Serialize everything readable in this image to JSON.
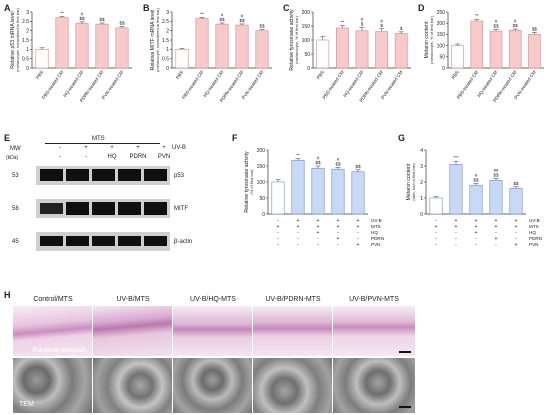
{
  "panels": {
    "A": "A",
    "B": "B",
    "C": "C",
    "D": "D",
    "E": "E",
    "F": "F",
    "G": "G",
    "H": "H"
  },
  "colors": {
    "bar_fill": "#f6caca",
    "bar_stroke": "#d88a8a",
    "bar_blue_fill": "#c7d9f5",
    "bar_blue_stroke": "#6d8fc8",
    "ctrl_fill": "#ffffff"
  },
  "chart_data": [
    {
      "panel": "A",
      "type": "bar",
      "categories": [
        "PBS",
        "PBS-treated CM",
        "HQ-treated CM",
        "PDRN-treated CM",
        "PVN-treated CM"
      ],
      "values": [
        1.0,
        2.7,
        2.4,
        2.35,
        2.15
      ],
      "errors": [
        0.08,
        0.06,
        0.07,
        0.06,
        0.07
      ],
      "annotations": [
        "",
        "**",
        "#\n$$",
        "$$",
        "$$"
      ],
      "ylabel": "Relative p53 mRNA level",
      "ylabel2": "(melanocyte, normalized to first bar)",
      "ylim": [
        0,
        3
      ],
      "yticks": [
        0,
        0.5,
        1,
        1.5,
        2,
        2.5,
        3
      ]
    },
    {
      "panel": "B",
      "type": "bar",
      "categories": [
        "PBS",
        "PBS-treated CM",
        "HQ-treated CM",
        "PDRN-treated CM",
        "PVN-treated CM"
      ],
      "values": [
        1.0,
        2.65,
        2.35,
        2.3,
        2.0
      ],
      "errors": [
        0.05,
        0.06,
        0.06,
        0.06,
        0.05
      ],
      "annotations": [
        "",
        "**",
        "#\n$$",
        "#\n$$",
        "$$"
      ],
      "ylabel": "Relative MITF mRNA level",
      "ylabel2": "(melanocyte, normalized to first bar)",
      "ylim": [
        0,
        3
      ],
      "yticks": [
        0,
        0.5,
        1,
        1.5,
        2,
        2.5,
        3
      ]
    },
    {
      "panel": "C",
      "type": "bar",
      "categories": [
        "PBS",
        "PBS-treated CM",
        "HQ-treated CM",
        "PDRN-treated CM",
        "PVN-treated CM"
      ],
      "values": [
        100,
        143,
        133,
        130,
        123
      ],
      "errors": [
        12,
        8,
        12,
        10,
        6
      ],
      "annotations": [
        "",
        "**",
        "#\n$",
        "#\n$",
        "$"
      ],
      "ylabel": "Relative tyrosinase activity",
      "ylabel2": "(melanocyte, % of first bar)",
      "ylim": [
        0,
        200
      ],
      "yticks": [
        0,
        50,
        100,
        150,
        200
      ]
    },
    {
      "panel": "D",
      "type": "bar",
      "categories": [
        "PBS",
        "PBS-treated CM",
        "HQ-treated CM",
        "PDRN-treated CM",
        "PVN-treated CM"
      ],
      "values": [
        100,
        210,
        165,
        168,
        150
      ],
      "errors": [
        7,
        8,
        7,
        6,
        9
      ],
      "annotations": [
        "",
        "**",
        "#\n$$",
        "#\n$$",
        "$$"
      ],
      "ylabel": "Melanin content",
      "ylabel2": "(melanocyte, % of first bar)",
      "ylim": [
        0,
        250
      ],
      "yticks": [
        0,
        50,
        100,
        150,
        200,
        250
      ]
    },
    {
      "panel": "F",
      "type": "bar",
      "values": [
        100,
        168,
        143,
        140,
        132
      ],
      "errors": [
        7,
        5,
        7,
        6,
        6
      ],
      "annotations": [
        "",
        "**",
        "#\n$$",
        "#\n$$",
        "$$"
      ],
      "ylabel": "Relative tyrosinase activity",
      "ylabel2": "(% of first bar)",
      "ylim": [
        0,
        200
      ],
      "yticks": [
        0,
        50,
        100,
        150,
        200
      ],
      "conditions": {
        "rows": [
          "UV-B",
          "MTS",
          "HQ",
          "PDRN",
          "PVN"
        ],
        "signs": [
          [
            "-",
            "+",
            "+",
            "+",
            "+"
          ],
          [
            "+",
            "+",
            "+",
            "+",
            "+"
          ],
          [
            "-",
            "-",
            "+",
            "-",
            "-"
          ],
          [
            "-",
            "-",
            "-",
            "+",
            "-"
          ],
          [
            "-",
            "-",
            "-",
            "-",
            "+"
          ]
        ]
      }
    },
    {
      "panel": "G",
      "type": "bar",
      "values": [
        1.0,
        3.1,
        1.8,
        2.1,
        1.6
      ],
      "errors": [
        0.08,
        0.2,
        0.1,
        0.12,
        0.1
      ],
      "annotations": [
        "",
        "***",
        "#\n$$",
        "##\n$$",
        "$$"
      ],
      "ylabel": "Melanin content",
      "ylabel2": "(skin, fold of first bar)",
      "ylim": [
        0,
        4
      ],
      "yticks": [
        0,
        1,
        2,
        3,
        4
      ],
      "conditions": {
        "rows": [
          "UV-B",
          "MTS",
          "HQ",
          "PDRN",
          "PVN"
        ],
        "signs": [
          [
            "-",
            "+",
            "+",
            "+",
            "+"
          ],
          [
            "+",
            "+",
            "+",
            "+",
            "+"
          ],
          [
            "-",
            "-",
            "+",
            "-",
            "-"
          ],
          [
            "-",
            "-",
            "-",
            "+",
            "-"
          ],
          [
            "-",
            "-",
            "-",
            "-",
            "+"
          ]
        ]
      }
    }
  ],
  "blot": {
    "header": "MTS",
    "mw_label": "MW",
    "kda_label": "(kDa)",
    "uvb_label": "UV-B",
    "uvb_signs": [
      "-",
      "+",
      "+",
      "+",
      "+"
    ],
    "lanes_treat": [
      "",
      "",
      "HQ",
      "PDRN",
      "PVN"
    ],
    "rows": [
      {
        "mw": "53",
        "name": "p53"
      },
      {
        "mw": "58",
        "name": "MITF"
      },
      {
        "mw": "45",
        "name": "β-actin"
      }
    ]
  },
  "histology": {
    "titles": [
      "Control/MTS",
      "UV-B/MTS",
      "UV-B/HQ-MTS",
      "UV-B/PDRN-MTS",
      "UV-B/PVN-MTS"
    ],
    "stain_label": "Fontana-Masson",
    "tem_label": "TEM"
  }
}
